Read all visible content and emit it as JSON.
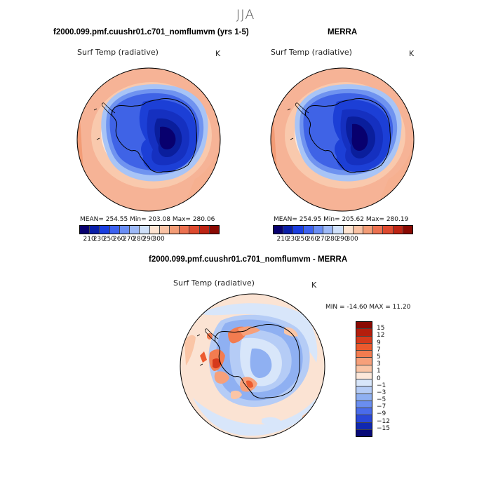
{
  "season": "JJA",
  "panels": [
    {
      "title": "f2000.099.pmf.cuushr01.c701_nomflumvm (yrs 1-5)",
      "variable": "Surf Temp (radiative)",
      "unit": "K",
      "stats": "MEAN= 254.55   Min= 203.08   Max= 280.06"
    },
    {
      "title": "MERRA",
      "variable": "Surf Temp (radiative)",
      "unit": "K",
      "stats": "MEAN= 254.95   Min= 205.62   Max= 280.19"
    }
  ],
  "diff_panel": {
    "title": "f2000.099.pmf.cuushr01.c701_nomflumvm - MERRA",
    "variable": "Surf Temp (radiative)",
    "unit": "K",
    "stats": "MIN = -14.60  MAX =  11.20"
  },
  "abs_colorbar": {
    "colors": [
      "#08006e",
      "#0a1fa8",
      "#1a3ee0",
      "#3d62f0",
      "#6a8ef5",
      "#9db9f7",
      "#cfe0f9",
      "#fde3d0",
      "#f9c2a4",
      "#f39c76",
      "#ec7150",
      "#de4a2f",
      "#bd2414",
      "#8a0a03"
    ],
    "ticks": [
      "210",
      "230",
      "250",
      "260",
      "270",
      "280",
      "290",
      "300"
    ]
  },
  "diff_colorbar": {
    "colors": [
      "#8a0a03",
      "#b41e0d",
      "#d63a1c",
      "#ec5a2e",
      "#f37c50",
      "#f7a07a",
      "#fac5a6",
      "#fde8da",
      "#d8e6fa",
      "#b5ccf6",
      "#8fb0f2",
      "#6a8ef0",
      "#4a6cea",
      "#2a48d8",
      "#1028b0",
      "#080a78"
    ],
    "ticks": [
      "15",
      "12",
      "9",
      "7",
      "5",
      "3",
      "1",
      "0",
      "−1",
      "−3",
      "−5",
      "−7",
      "−9",
      "−12",
      "−15"
    ]
  }
}
